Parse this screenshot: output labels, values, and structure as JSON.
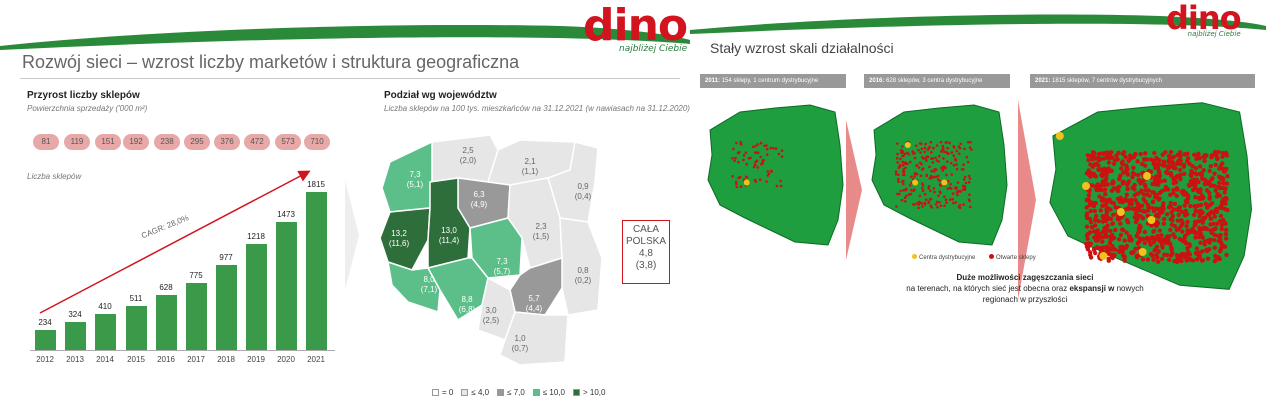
{
  "slide1": {
    "logo": {
      "text": "dino",
      "tagline": "najbliżej Ciebie"
    },
    "title": "Rozwój sieci – wzrost liczby marketów i struktura geograficzna",
    "left_section": {
      "title": "Przyrost liczby sklepów",
      "subtitle": "Powierzchnia sprzedaży ('000 m²)",
      "area_values": [
        "81",
        "119",
        "151",
        "192",
        "238",
        "295",
        "376",
        "472",
        "573",
        "710"
      ],
      "stores_label": "Liczba sklepów",
      "cagr_label": "CAGR: 28,0%"
    },
    "right_section": {
      "title": "Podział wg województw",
      "subtitle": "Liczba sklepów na 100 tys. mieszkańców na 31.12.2021 (w nawiasach na 31.12.2020)",
      "voivodeships": [
        {
          "v1": "2,5",
          "v2": "(2,0)"
        },
        {
          "v1": "2,1",
          "v2": "(1,1)"
        },
        {
          "v1": "7,3",
          "v2": "(5,1)"
        },
        {
          "v1": "6,3",
          "v2": "(4,9)"
        },
        {
          "v1": "0,9",
          "v2": "(0,4)"
        },
        {
          "v1": "13,2",
          "v2": "(11,6)"
        },
        {
          "v1": "13,0",
          "v2": "(11,4)"
        },
        {
          "v1": "2,3",
          "v2": "(1,5)"
        },
        {
          "v1": "7,3",
          "v2": "(5,7)"
        },
        {
          "v1": "8,0",
          "v2": "(7,1)"
        },
        {
          "v1": "0,8",
          "v2": "(0,2)"
        },
        {
          "v1": "8,8",
          "v2": "(6,8)"
        },
        {
          "v1": "5,7",
          "v2": "(4,4)"
        },
        {
          "v1": "3,0",
          "v2": "(2,5)"
        },
        {
          "v1": "1,0",
          "v2": "(0,7)"
        }
      ],
      "total": {
        "l1": "CAŁA",
        "l2": "POLSKA",
        "l3": "4,8",
        "l4": "(3,8)"
      },
      "legend": [
        "= 0",
        "≤ 4,0",
        "≤ 7,0",
        "≤ 10,0",
        "> 10,0"
      ],
      "legend_colors": [
        "#ffffff",
        "#e6e6e6",
        "#999999",
        "#5cbf8a",
        "#2e6e3a"
      ]
    }
  },
  "chart_data": {
    "type": "bar",
    "categories": [
      "2012",
      "2013",
      "2014",
      "2015",
      "2016",
      "2017",
      "2018",
      "2019",
      "2020",
      "2021"
    ],
    "values": [
      234,
      324,
      410,
      511,
      628,
      775,
      977,
      1218,
      1473,
      1815
    ],
    "title": "",
    "xlabel": "",
    "ylabel": "",
    "ylim": [
      0,
      1900
    ]
  },
  "slide2": {
    "logo": {
      "text": "dino",
      "tagline": "najbliżej Ciebie"
    },
    "title": "Stały wzrost skali działalności",
    "maps": [
      {
        "year": "2011:",
        "desc": " 154 sklepy, 1 centrum dystrybucyjne"
      },
      {
        "year": "2016:",
        "desc": " 628 sklepów, 3 centra dystrybucyjne"
      },
      {
        "year": "2021:",
        "desc": " 1815 sklepów, 7 centrów dystrybucyjnych"
      }
    ],
    "legend": {
      "dc": "Centra dystrybucyjne",
      "stores": "Otwarte sklepy"
    },
    "text": {
      "l1_bold": "Duże możliwości zagęszczania sieci",
      "l2_pre": "na terenach, na których sieć jest obecna oraz ",
      "l2_bold": "ekspansji w",
      "l2_post": " nowych",
      "l3": "regionach w przyszłości"
    },
    "colors": {
      "map_green": "#1e9e3e",
      "store_red": "#cc1111",
      "dc_yellow": "#f2c21b"
    }
  }
}
